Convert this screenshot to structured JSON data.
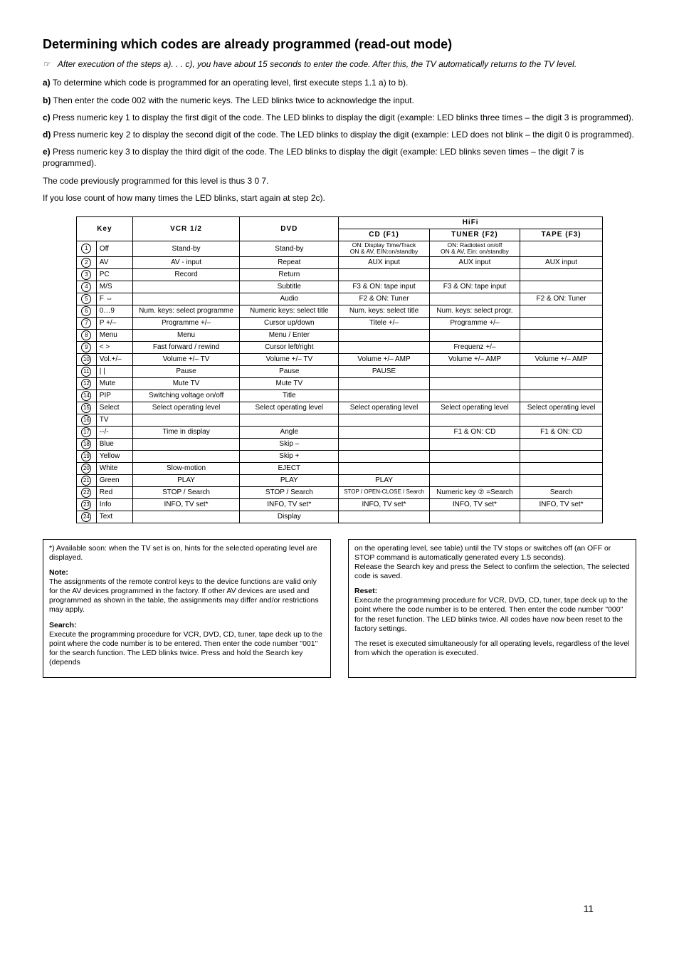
{
  "title": "Determining which codes are already programmed (read-out mode)",
  "note_icon": "☞",
  "italic_note": "After execution of the steps a). . . c), you have about 15 seconds to enter the code. After this, the TV automatically returns to the TV level.",
  "steps": {
    "a": "To determine which code is programmed for an operating level, first execute steps 1.1 a) to b).",
    "b": "Then enter the code 002 with the numeric keys. The LED blinks twice to acknowledge the input.",
    "c": "Press numeric key 1 to display the first digit of the code. The LED blinks to display the digit (example: LED blinks three times – the digit 3 is programmed).",
    "d": "Press numeric key 2 to display the second digit of the code. The LED blinks to display the digit (example: LED does not blink – the digit 0 is programmed).",
    "e": "Press numeric key 3 to display the third digit of the code. The LED blinks to display the digit (example: LED blinks seven times – the digit 7 is programmed)."
  },
  "summary1": "The code previously programmed for this level is thus 3 0 7.",
  "summary2": "If you lose count of how many times the LED blinks, start again at step 2c).",
  "table": {
    "headers": {
      "key": "Key",
      "vcr": "VCR 1/2",
      "dvd": "DVD",
      "hifi": "HiFi",
      "cd": "CD (F1)",
      "tuner": "TUNER (F2)",
      "tape": "TAPE (F3)"
    },
    "rows": [
      {
        "n": "1",
        "key": "Off",
        "vcr": "Stand-by",
        "dvd": "Stand-by",
        "cd": "ON: Display Time/Track\nON & AV, EIN:on/standby",
        "tuner": "ON: Radiotext on/off\nON & AV, Ein: on/standby",
        "tape": ""
      },
      {
        "n": "2",
        "key": "AV",
        "vcr": "AV - input",
        "dvd": "Repeat",
        "cd": "AUX input",
        "tuner": "AUX input",
        "tape": "AUX input"
      },
      {
        "n": "3",
        "key": "PC",
        "vcr": "Record",
        "dvd": "Return",
        "cd": "",
        "tuner": "",
        "tape": ""
      },
      {
        "n": "4",
        "key": "M/S",
        "vcr": "",
        "dvd": "Subtitle",
        "cd": "F3 & ON: tape input",
        "tuner": "F3 & ON: tape input",
        "tape": ""
      },
      {
        "n": "5",
        "key": "F ⇔",
        "vcr": "",
        "dvd": "Audio",
        "cd": "F2 & ON: Tuner",
        "tuner": "",
        "tape": "F2 & ON: Tuner"
      },
      {
        "n": "6",
        "key": "0…9",
        "vcr": "Num. keys: select programme",
        "dvd": "Numeric keys: select title",
        "cd": "Num. keys: select title",
        "tuner": "Num. keys: select progr.",
        "tape": ""
      },
      {
        "n": "7",
        "key": "P +/–",
        "vcr": "Programme +/–",
        "dvd": "Cursor up/down",
        "cd": "Titele +/–",
        "tuner": "Programme +/–",
        "tape": ""
      },
      {
        "n": "8",
        "key": "Menu",
        "vcr": "Menu",
        "dvd": "Menu / Enter",
        "cd": "",
        "tuner": "",
        "tape": ""
      },
      {
        "n": "9",
        "key": "< >",
        "vcr": "Fast forward / rewind",
        "dvd": "Cursor left/right",
        "cd": "",
        "tuner": "Frequenz +/–",
        "tape": ""
      },
      {
        "n": "10",
        "key": "Vol.+/–",
        "vcr": "Volume +/– TV",
        "dvd": "Volume +/– TV",
        "cd": "Volume +/– AMP",
        "tuner": "Volume +/– AMP",
        "tape": "Volume +/– AMP"
      },
      {
        "n": "11",
        "key": "| |",
        "vcr": "Pause",
        "dvd": "Pause",
        "cd": "PAUSE",
        "tuner": "",
        "tape": ""
      },
      {
        "n": "12",
        "key": "Mute",
        "vcr": "Mute TV",
        "dvd": "Mute TV",
        "cd": "",
        "tuner": "",
        "tape": ""
      },
      {
        "n": "14",
        "key": "PIP",
        "vcr": "Switching voltage on/off",
        "dvd": "Title",
        "cd": "",
        "tuner": "",
        "tape": ""
      },
      {
        "n": "15",
        "key": "Select",
        "vcr": "Select operating level",
        "dvd": "Select operating level",
        "cd": "Select operating level",
        "tuner": "Select operating level",
        "tape": "Select operating level"
      },
      {
        "n": "16",
        "key": "TV",
        "vcr": "",
        "dvd": "",
        "cd": "",
        "tuner": "",
        "tape": ""
      },
      {
        "n": "17",
        "key": "--/-",
        "vcr": "Time in display",
        "dvd": "Angle",
        "cd": "",
        "tuner": "F1 & ON: CD",
        "tape": "F1 & ON: CD"
      },
      {
        "n": "18",
        "key": "Blue",
        "vcr": "",
        "dvd": "Skip –",
        "cd": "",
        "tuner": "",
        "tape": ""
      },
      {
        "n": "19",
        "key": "Yellow",
        "vcr": "",
        "dvd": "Skip +",
        "cd": "",
        "tuner": "",
        "tape": ""
      },
      {
        "n": "20",
        "key": "White",
        "vcr": "Slow-motion",
        "dvd": "EJECT",
        "cd": "",
        "tuner": "",
        "tape": ""
      },
      {
        "n": "21",
        "key": "Green",
        "vcr": "PLAY",
        "dvd": "PLAY",
        "cd": "PLAY",
        "tuner": "",
        "tape": ""
      },
      {
        "n": "22",
        "key": "Red",
        "vcr": "STOP / Search",
        "dvd": "STOP / Search",
        "cd": "STOP / OPEN-CLOSE / Search",
        "tuner": "Numeric key ② =Search",
        "tape": "Search"
      },
      {
        "n": "23",
        "key": "Info",
        "vcr": "INFO, TV set*",
        "dvd": "INFO, TV set*",
        "cd": "INFO, TV set*",
        "tuner": "INFO, TV set*",
        "tape": "INFO, TV set*"
      },
      {
        "n": "24",
        "key": "Text",
        "vcr": "",
        "dvd": "Display",
        "cd": "",
        "tuner": "",
        "tape": ""
      }
    ]
  },
  "notes": {
    "left": {
      "star": "*) Available soon: when the TV set is on, hints for the selected operating level are displayed.",
      "note_h": "Note:",
      "note_t": "The assignments of the remote control keys to the device functions are valid only for the AV devices programmed in the factory. If other AV devices are used and programmed as shown in the table, the assignments may differ and/or restrictions may apply.",
      "search_h": "Search:",
      "search_t": "Execute the programming procedure for VCR, DVD, CD, tuner, tape deck up to the point where the code number is to be entered. Then enter the code number \"001\" for the search function. The LED blinks twice. Press and hold the Search key (depends"
    },
    "right": {
      "cont": "on the operating level, see table) until the TV stops or switches off (an OFF or STOP command is automatically generated every 1.5 seconds).\nRelease the Search key and press the Select to confirm the selection, The selected code is saved.",
      "reset_h": "Reset:",
      "reset_t": "Execute the programming procedure for VCR, DVD, CD, tuner, tape deck up to the point where the code number is to be entered. Then enter the code number \"000\" for the reset function. The LED blinks twice. All codes have now been reset to the factory settings.",
      "reset_t2": "The reset is executed simultaneously for all operating levels, regardless of the level from which the operation is executed."
    }
  },
  "page_number": "11"
}
